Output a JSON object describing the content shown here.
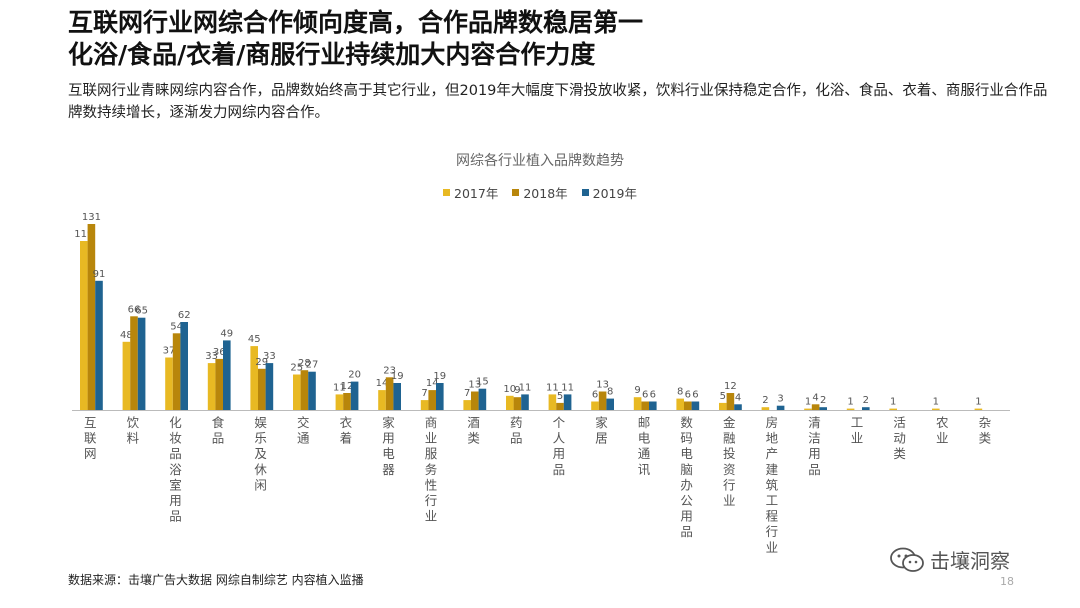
{
  "title_line1": "互联网行业网综合作倾向度高，合作品牌数稳居第一",
  "title_line2": "化浴/食品/衣着/商服行业持续加大内容合作力度",
  "description": "互联网行业青睐网综内容合作，品牌数始终高于其它行业，但2019年大幅度下滑投放收紧，饮料行业保持稳定合作，化浴、食品、衣着、商服行业合作品牌数持续增长，逐渐发力网综内容合作。",
  "source": "数据来源：击壤广告大数据 网综自制综艺 内容植入监播",
  "watermark": "击壤洞察",
  "watermark_icon": "wechat-icon",
  "page_number": "18",
  "colors": {
    "s2017": "#E8B923",
    "s2018": "#B8860B",
    "s2019": "#1F6391",
    "axis": "#BBBBBB",
    "label": "#555555"
  },
  "chart_data": {
    "type": "bar",
    "title": "网综各行业植入品牌数趋势",
    "legend_position": "top",
    "categories": [
      "互联网",
      "饮料",
      "化妆品浴室用品",
      "食品",
      "娱乐及休闲",
      "交通",
      "衣着",
      "家用电器",
      "商业服务性行业",
      "酒类",
      "药品",
      "个人用品",
      "家居",
      "邮电通讯",
      "数码电脑办公用品",
      "金融投资行业",
      "房地产建筑工程行业",
      "清洁用品",
      "工业",
      "活动类",
      "农业",
      "杂类"
    ],
    "series": [
      {
        "name": "2017年",
        "values": [
          119,
          48,
          37,
          33,
          45,
          25,
          11,
          14,
          7,
          7,
          10,
          11,
          6,
          9,
          8,
          5,
          2,
          1,
          1,
          1,
          1,
          1
        ]
      },
      {
        "name": "2018年",
        "values": [
          131,
          66,
          54,
          36,
          29,
          28,
          12,
          23,
          14,
          13,
          9,
          5,
          13,
          6,
          6,
          12,
          0,
          4,
          0,
          0,
          0,
          0
        ]
      },
      {
        "name": "2019年",
        "values": [
          91,
          65,
          62,
          49,
          33,
          27,
          20,
          19,
          19,
          15,
          11,
          11,
          8,
          6,
          6,
          4,
          3,
          2,
          2,
          0,
          0,
          0
        ]
      }
    ],
    "labels": [
      [
        "119",
        "131",
        "91"
      ],
      [
        "48",
        "66",
        "65"
      ],
      [
        "37",
        "54",
        "62"
      ],
      [
        "33",
        "36",
        "49"
      ],
      [
        "45",
        "29",
        "33"
      ],
      [
        "25",
        "28",
        "27"
      ],
      [
        "11",
        "12",
        "20"
      ],
      [
        "14",
        "23",
        "19"
      ],
      [
        "7",
        "14",
        "19"
      ],
      [
        "7",
        "13",
        "15"
      ],
      [
        "10",
        "9",
        "11"
      ],
      [
        "11",
        "5",
        "11"
      ],
      [
        "6",
        "13",
        "8"
      ],
      [
        "9",
        "6",
        "6"
      ],
      [
        "8",
        "6",
        "6"
      ],
      [
        "5",
        "12",
        "4"
      ],
      [
        "2",
        "",
        "3"
      ],
      [
        "1",
        "4",
        "2"
      ],
      [
        "1",
        "",
        "2"
      ],
      [
        "1",
        "",
        ""
      ],
      [
        "1",
        "",
        ""
      ],
      [
        "1",
        "",
        ""
      ]
    ],
    "ylim": [
      0,
      140
    ],
    "grid": false
  }
}
